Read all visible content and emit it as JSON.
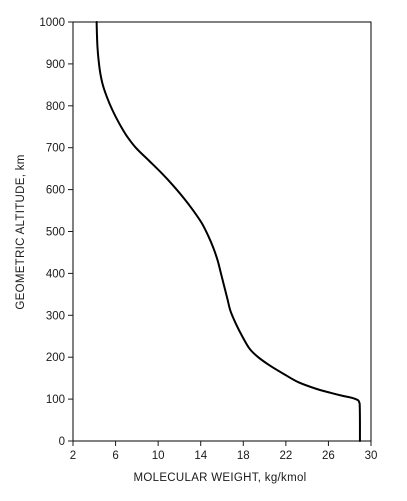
{
  "chart_data": {
    "type": "line",
    "title": "",
    "xlabel": "MOLECULAR WEIGHT, kg/kmol",
    "ylabel": "GEOMETRIC ALTITUDE, km",
    "xlim": [
      2,
      30
    ],
    "ylim": [
      0,
      1000
    ],
    "xticks": [
      2,
      6,
      10,
      14,
      18,
      22,
      26,
      30
    ],
    "xtick_labels": [
      "2",
      "6",
      "10",
      "14",
      "18",
      "22",
      "26",
      "30"
    ],
    "yticks": [
      0,
      100,
      200,
      300,
      400,
      500,
      600,
      700,
      800,
      900,
      1000
    ],
    "ytick_labels": [
      "0",
      "100",
      "200",
      "300",
      "400",
      "500",
      "600",
      "700",
      "800",
      "900",
      "1000"
    ],
    "grid": false,
    "legend": "none",
    "series": [
      {
        "x": [
          28.96,
          28.96,
          28.94,
          28.9,
          28.8,
          28.55,
          28.2,
          27.3,
          26.2,
          24.8,
          23.2,
          21.8,
          20.5,
          19.4,
          18.6,
          17.9,
          17.3,
          16.8,
          16.5,
          16.2,
          15.9,
          15.6,
          15.2,
          14.7,
          14.1,
          13.3,
          12.4,
          11.4,
          10.3,
          9.1,
          7.9,
          7.0,
          6.3,
          5.7,
          5.2,
          4.8,
          4.55,
          4.4,
          4.3,
          4.25,
          4.22
        ],
        "y": [
          0,
          50,
          85,
          92,
          97,
          100,
          103,
          108,
          115,
          125,
          140,
          160,
          180,
          200,
          220,
          250,
          280,
          310,
          340,
          370,
          400,
          430,
          460,
          490,
          520,
          550,
          580,
          610,
          640,
          670,
          700,
          730,
          760,
          790,
          820,
          850,
          880,
          910,
          940,
          970,
          1000
        ]
      }
    ],
    "line_color": "#000000"
  }
}
